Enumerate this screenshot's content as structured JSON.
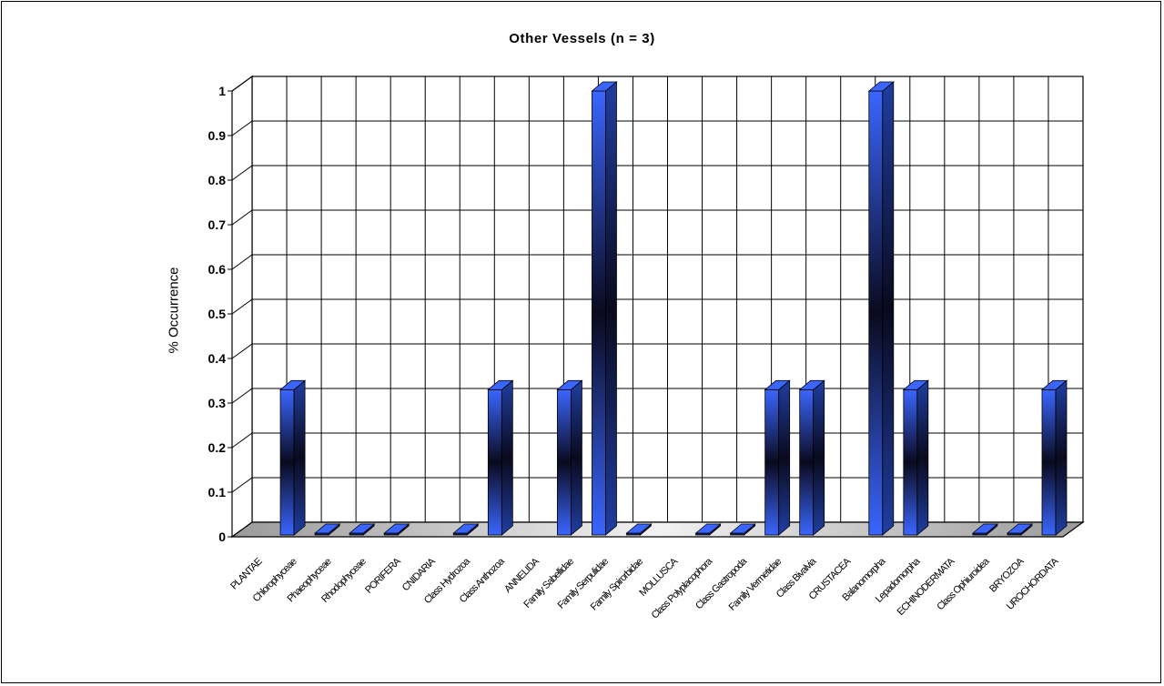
{
  "chart_data": {
    "type": "bar",
    "title": "Other Vessels (n = 3)",
    "ylabel": "% Occurrence",
    "xlabel": "",
    "ylim": [
      0,
      1
    ],
    "yticks": [
      "0",
      "0.1",
      "0.2",
      "0.3",
      "0.4",
      "0.5",
      "0.6",
      "0.7",
      "0.8",
      "0.9",
      "1"
    ],
    "grid": true,
    "categories": [
      "PLANTAE",
      "Chlorophyceae",
      "Phaeophyceae",
      "Rhodophyceae",
      "PORIFERA",
      "CNIDARIA",
      "Class Hydrozoa",
      "Class Anthozoa",
      "ANNELIDA",
      "Family Sabellidae",
      "Family Serpulidae",
      "Family Spirorbidae",
      "MOLLUSCA",
      "Class Polyplacophora",
      "Class Gastropoda",
      "Family Vermetidae",
      "Class Bivalvia",
      "CRUSTACEA",
      "Balanomorpha",
      "Lepadomorpha",
      "ECHINODERMATA",
      "Class Ophiuroidea",
      "BRYOZOA",
      "UROCHORDATA"
    ],
    "values": [
      null,
      0.33,
      0,
      0,
      0,
      null,
      0,
      0.33,
      null,
      0.33,
      1,
      0,
      null,
      0,
      0,
      0.33,
      0.33,
      null,
      1,
      0.33,
      null,
      0,
      0,
      0.33
    ],
    "colors": {
      "bar_front": "#3a66ff",
      "bar_dark": "#0a0a1e",
      "bar_side": "#1f3ea0",
      "floor": "#c8c8c8"
    }
  }
}
